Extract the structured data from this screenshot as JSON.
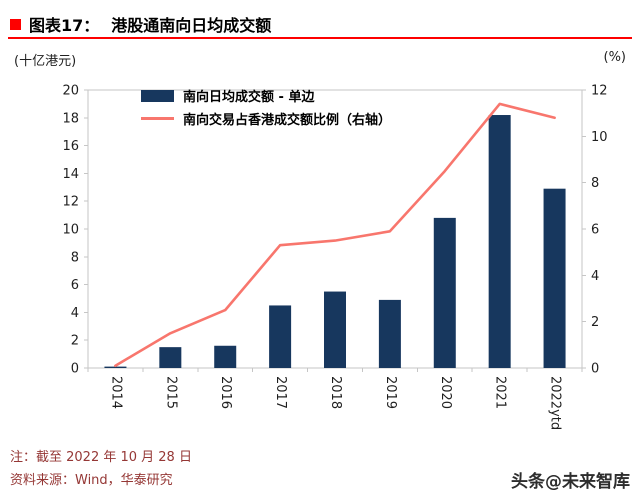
{
  "colors": {
    "accent_red": "#fe0000",
    "bar_navy": "#17375e",
    "line_salmon": "#f8766d",
    "note_red": "#953735",
    "axis_gray": "#c6c6c6",
    "text_dark": "#1f1f1f",
    "watermark_gray": "#2d2d2d"
  },
  "header": {
    "tag": "图表17：",
    "title": "港股通南向日均成交额"
  },
  "chart_data": {
    "type": "combo",
    "title": "港股通南向日均成交额",
    "categories": [
      "2014",
      "2015",
      "2016",
      "2017",
      "2018",
      "2019",
      "2020",
      "2021",
      "2022ytd"
    ],
    "series": [
      {
        "name": "南向日均成交额 - 单边",
        "type": "bar",
        "axis": "left",
        "color": "#17375e",
        "values": [
          0.1,
          1.5,
          1.6,
          4.5,
          5.5,
          4.9,
          10.8,
          18.2,
          12.9
        ]
      },
      {
        "name": "南向交易占香港成交额比例（右轴）",
        "type": "line",
        "axis": "right",
        "color": "#f8766d",
        "values": [
          0.1,
          1.5,
          2.5,
          5.3,
          5.5,
          5.9,
          8.5,
          11.4,
          10.8
        ]
      }
    ],
    "left_axis": {
      "label": "(十亿港元)",
      "min": 0,
      "max": 20,
      "tick_step": 2
    },
    "right_axis": {
      "label": "(%)",
      "min": 0,
      "max": 12,
      "tick_step": 2
    },
    "grid": false,
    "legend_position": "top-left-inside"
  },
  "footer": {
    "note": "注：截至 2022 年 10 月 28 日",
    "source": "资料来源：Wind，华泰研究",
    "watermark": "头条@未来智库"
  }
}
